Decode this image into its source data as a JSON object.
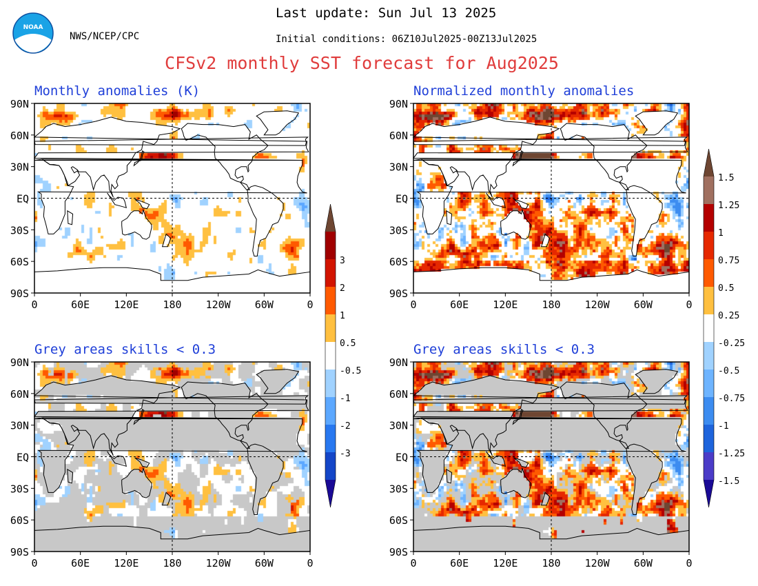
{
  "header": {
    "org": "NWS/NCEP/CPC",
    "logo_text": "NOAA",
    "last_update": "Last update: Sun Jul 13 2025",
    "initial_conditions": "Initial conditions: 06Z10Jul2025-00Z13Jul2025",
    "title": "CFSv2 monthly SST forecast for Aug2025"
  },
  "colors": {
    "title": "#e03c3c",
    "panel_title": "#1f3fd8",
    "land": "#ffffff",
    "grey_skill": "#c8c8c8",
    "coast": "#000000"
  },
  "chart_data": [
    {
      "type": "heatmap",
      "id": "anom",
      "title": "Monthly anomalies (K)",
      "xticks": [
        "0",
        "60E",
        "120E",
        "180",
        "120W",
        "60W",
        "0"
      ],
      "yticks": [
        "90N",
        "60N",
        "30N",
        "EQ",
        "30S",
        "60S",
        "90S"
      ],
      "xlim": [
        0,
        360
      ],
      "ylim": [
        -90,
        90
      ],
      "grey_mask": false
    },
    {
      "type": "heatmap",
      "id": "norm",
      "title": "Normalized monthly anomalies",
      "xticks": [
        "0",
        "60E",
        "120E",
        "180",
        "120W",
        "60W",
        "0"
      ],
      "yticks": [
        "90N",
        "60N",
        "30N",
        "EQ",
        "30S",
        "60S",
        "90S"
      ],
      "xlim": [
        0,
        360
      ],
      "ylim": [
        -90,
        90
      ],
      "grey_mask": false
    },
    {
      "type": "heatmap",
      "id": "anom_skill",
      "title": "Grey areas skills < 0.3",
      "xticks": [
        "0",
        "60E",
        "120E",
        "180",
        "120W",
        "60W",
        "0"
      ],
      "yticks": [
        "90N",
        "60N",
        "30N",
        "EQ",
        "30S",
        "60S",
        "90S"
      ],
      "xlim": [
        0,
        360
      ],
      "ylim": [
        -90,
        90
      ],
      "grey_mask": true
    },
    {
      "type": "heatmap",
      "id": "norm_skill",
      "title": "Grey areas skills < 0.3",
      "xticks": [
        "0",
        "60E",
        "120E",
        "180",
        "120W",
        "60W",
        "0"
      ],
      "yticks": [
        "90N",
        "60N",
        "30N",
        "EQ",
        "30S",
        "60S",
        "90S"
      ],
      "xlim": [
        0,
        360
      ],
      "ylim": [
        -90,
        90
      ],
      "grey_mask": true
    }
  ],
  "colorbars": {
    "anom": {
      "warm": [
        {
          "label": "0.5",
          "color": "#ffc040"
        },
        {
          "label": "1",
          "color": "#ff5a00"
        },
        {
          "label": "2",
          "color": "#d21400"
        },
        {
          "label": "3",
          "color": "#a00000"
        },
        {
          "label": "",
          "color": "#6e4632"
        }
      ],
      "cold": [
        {
          "label": "-0.5",
          "color": "#a0d2ff"
        },
        {
          "label": "-1",
          "color": "#5ca8ff"
        },
        {
          "label": "-2",
          "color": "#2878f0"
        },
        {
          "label": "-3",
          "color": "#1446c8"
        },
        {
          "label": "",
          "color": "#1a0a96"
        }
      ]
    },
    "norm": {
      "warm": [
        {
          "label": "0.25",
          "color": "#ffc040"
        },
        {
          "label": "0.5",
          "color": "#ff5a00"
        },
        {
          "label": "0.75",
          "color": "#e62800"
        },
        {
          "label": "1",
          "color": "#b40000"
        },
        {
          "label": "1.25",
          "color": "#a07060"
        },
        {
          "label": "1.5",
          "color": "#6e4632"
        }
      ],
      "cold": [
        {
          "label": "-0.25",
          "color": "#a0d2ff"
        },
        {
          "label": "-0.5",
          "color": "#6eb4ff"
        },
        {
          "label": "-0.75",
          "color": "#3c8cf0"
        },
        {
          "label": "-1",
          "color": "#1e64dc"
        },
        {
          "label": "-1.25",
          "color": "#4b3cc8"
        },
        {
          "label": "-1.5",
          "color": "#1a0a96"
        }
      ]
    }
  }
}
